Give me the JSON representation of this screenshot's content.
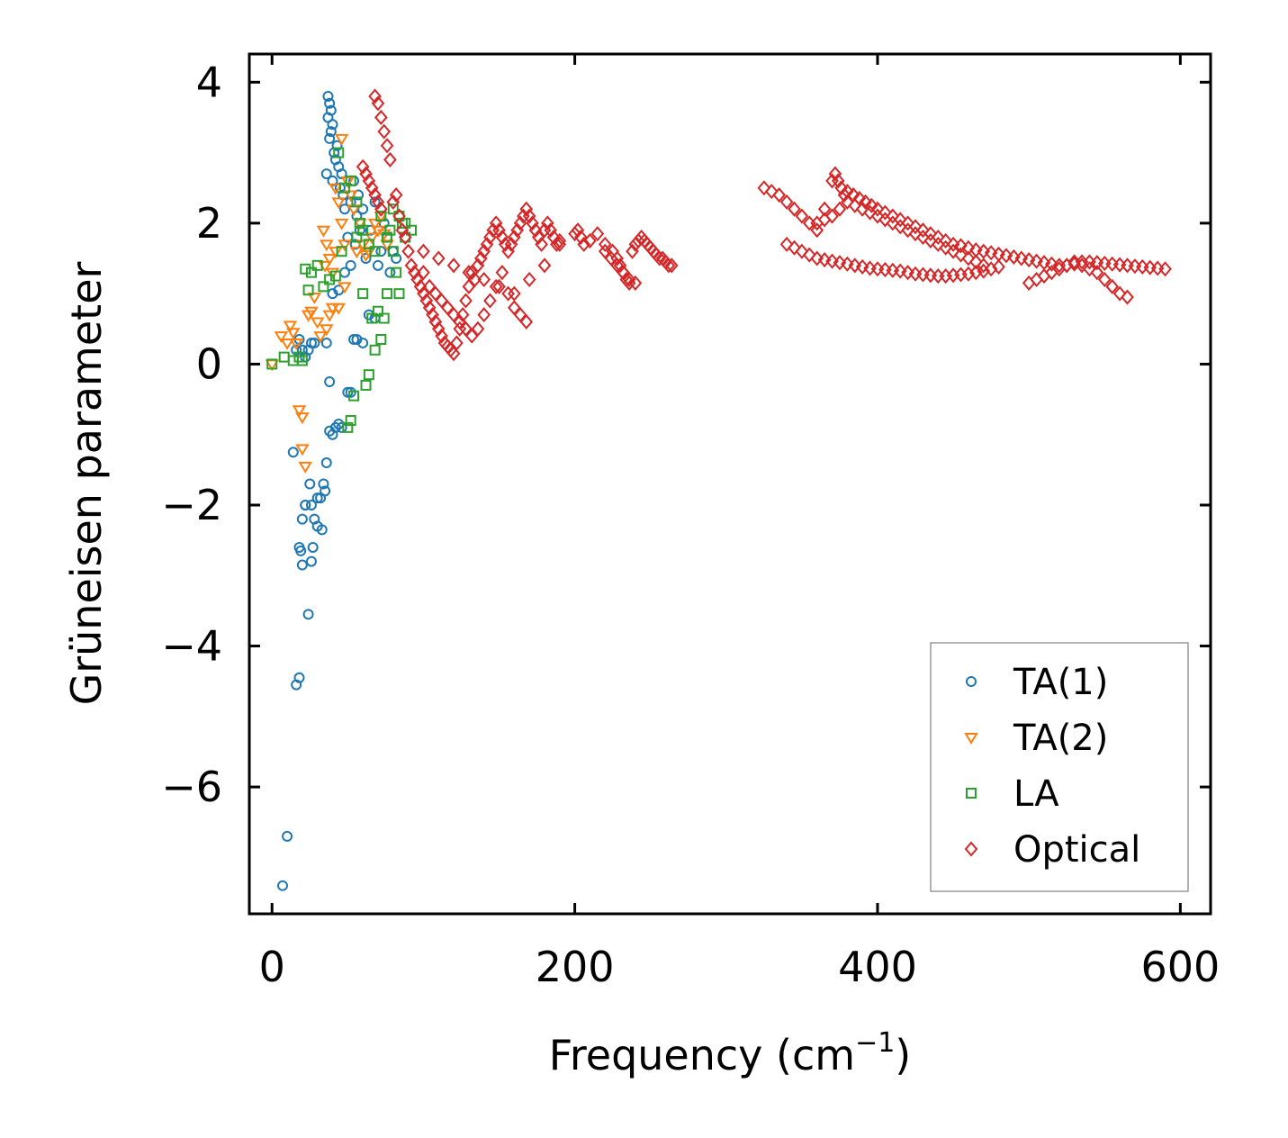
{
  "chart_data": {
    "type": "scatter",
    "title": "",
    "xlabel": "Frequency (cm",
    "xlabel_sup": "−1",
    "xlabel_close": ")",
    "ylabel": "Grüneisen parameter",
    "xlim": [
      -15,
      620
    ],
    "ylim": [
      -7.8,
      4.4
    ],
    "xticks": [
      0,
      200,
      400,
      600
    ],
    "xtick_labels": [
      "0",
      "200",
      "400",
      "600"
    ],
    "yticks": [
      4,
      2,
      0,
      -2,
      -4,
      -6
    ],
    "ytick_labels": [
      "4",
      "2",
      "0",
      "−2",
      "−4",
      "−6"
    ],
    "grid": false,
    "legend_position": "lower-right",
    "series": [
      {
        "name": "TA(1)",
        "marker": "circle",
        "color": "#1f77b4",
        "x": [
          7,
          10,
          14,
          16,
          18,
          19,
          20,
          22,
          24,
          25,
          26,
          27,
          28,
          30,
          32,
          33,
          35,
          36,
          37,
          37,
          38,
          38,
          39,
          39,
          40,
          40,
          41,
          42,
          43,
          44,
          45,
          46,
          47,
          48,
          50,
          52,
          54,
          55,
          56,
          57,
          58,
          60,
          62,
          65,
          68,
          70,
          72,
          74,
          76,
          78,
          80,
          82,
          18,
          20,
          22,
          26,
          30,
          34,
          36,
          38,
          40,
          42,
          44,
          46,
          50,
          52,
          54,
          56,
          60,
          64,
          68,
          16,
          18,
          20,
          22,
          24,
          26,
          28,
          36,
          38,
          40,
          44,
          48,
          52
        ],
        "y": [
          -7.4,
          -6.7,
          -1.25,
          -4.55,
          -4.45,
          -2.65,
          -2.85,
          -2.0,
          -3.55,
          -1.7,
          -2.8,
          -2.6,
          -2.2,
          -2.3,
          -1.9,
          -2.35,
          -1.8,
          2.7,
          3.8,
          3.5,
          3.7,
          3.2,
          3.6,
          3.3,
          3.4,
          2.6,
          3.0,
          2.9,
          3.1,
          2.8,
          2.5,
          2.7,
          2.4,
          2.2,
          1.8,
          2.3,
          2.6,
          1.7,
          2.1,
          2.4,
          1.9,
          2.2,
          1.5,
          1.9,
          2.3,
          1.4,
          1.6,
          2.0,
          1.8,
          1.3,
          1.6,
          1.5,
          -2.6,
          -2.2,
          -2.0,
          -2.0,
          -1.9,
          -1.7,
          -1.4,
          -0.95,
          -1.0,
          -0.9,
          -0.85,
          -0.9,
          -0.4,
          -0.4,
          0.35,
          0.35,
          0.3,
          0.7,
          0.65,
          0.2,
          0.35,
          0.2,
          0.1,
          0.2,
          0.3,
          0.3,
          0.3,
          -0.25,
          1.0,
          1.05,
          1.3,
          1.4
        ]
      },
      {
        "name": "TA(2)",
        "marker": "triangle-down",
        "color": "#ff7f0e",
        "x": [
          0,
          6,
          10,
          12,
          14,
          16,
          18,
          20,
          20,
          22,
          24,
          26,
          28,
          30,
          32,
          34,
          35,
          36,
          38,
          40,
          42,
          44,
          46,
          48,
          50,
          52,
          54,
          56,
          58,
          60,
          62,
          64,
          66,
          68,
          70,
          72,
          74,
          76,
          40,
          44,
          48,
          36,
          38,
          42,
          46
        ],
        "y": [
          0.0,
          0.4,
          0.3,
          0.55,
          0.45,
          0.3,
          -0.65,
          -0.75,
          -1.2,
          -1.45,
          0.7,
          0.75,
          0.95,
          0.6,
          0.4,
          1.9,
          1.4,
          1.7,
          1.5,
          1.3,
          1.6,
          2.3,
          2.0,
          1.7,
          2.6,
          2.4,
          2.2,
          1.6,
          2.0,
          1.7,
          1.55,
          1.6,
          1.8,
          2.0,
          1.9,
          2.1,
          1.85,
          1.7,
          0.8,
          0.8,
          1.1,
          0.5,
          0.7,
          2.5,
          3.2
        ]
      },
      {
        "name": "LA",
        "marker": "square",
        "color": "#2ca02c",
        "x": [
          0,
          8,
          14,
          18,
          20,
          22,
          24,
          26,
          30,
          34,
          38,
          42,
          46,
          50,
          52,
          54,
          56,
          58,
          60,
          62,
          64,
          66,
          68,
          70,
          72,
          74,
          76,
          78,
          80,
          82,
          84,
          86,
          88,
          52,
          56,
          60,
          64,
          68,
          72,
          76,
          80,
          84,
          88,
          92,
          48,
          44
        ],
        "y": [
          0.0,
          0.1,
          0.05,
          0.1,
          0.05,
          1.35,
          1.05,
          1.3,
          1.4,
          1.1,
          1.2,
          1.25,
          1.6,
          -0.9,
          -0.8,
          -0.45,
          1.8,
          2.0,
          1.0,
          -0.3,
          -0.15,
          0.65,
          0.2,
          0.75,
          0.35,
          0.65,
          1.0,
          1.9,
          1.6,
          1.3,
          1.0,
          2.0,
          1.8,
          2.6,
          2.3,
          1.9,
          1.7,
          1.6,
          2.1,
          1.8,
          2.2,
          2.1,
          2.0,
          1.9,
          2.5,
          3.0
        ]
      },
      {
        "name": "Optical",
        "marker": "diamond",
        "color": "#d62728",
        "x": [
          68,
          70,
          72,
          74,
          76,
          78,
          60,
          62,
          64,
          66,
          68,
          70,
          72,
          80,
          82,
          84,
          86,
          88,
          90,
          92,
          94,
          96,
          98,
          100,
          102,
          104,
          106,
          108,
          110,
          112,
          114,
          116,
          118,
          120,
          122,
          124,
          126,
          128,
          130,
          132,
          134,
          136,
          138,
          140,
          142,
          144,
          146,
          148,
          150,
          152,
          154,
          156,
          158,
          160,
          162,
          164,
          166,
          168,
          170,
          172,
          174,
          176,
          178,
          180,
          182,
          184,
          186,
          188,
          190,
          200,
          202,
          204,
          206,
          210,
          215,
          220,
          225,
          228,
          230,
          232,
          234,
          236,
          238,
          240,
          242,
          244,
          246,
          248,
          250,
          252,
          254,
          256,
          258,
          260,
          262,
          264,
          100,
          104,
          108,
          112,
          116,
          120,
          124,
          128,
          132,
          136,
          140,
          144,
          148,
          152,
          156,
          160,
          164,
          168,
          100,
          110,
          120,
          130,
          140,
          150,
          160,
          170,
          180,
          190,
          220,
          224,
          228,
          232,
          236,
          240,
          325,
          330,
          335,
          340,
          345,
          350,
          355,
          360,
          365,
          370,
          372,
          374,
          376,
          378,
          380,
          384,
          388,
          392,
          396,
          400,
          405,
          410,
          415,
          420,
          425,
          430,
          435,
          440,
          445,
          450,
          455,
          460,
          465,
          470,
          475,
          480,
          485,
          490,
          495,
          500,
          505,
          510,
          515,
          520,
          525,
          530,
          535,
          540,
          545,
          550,
          555,
          560,
          565,
          570,
          575,
          580,
          585,
          590,
          340,
          345,
          350,
          355,
          360,
          365,
          370,
          375,
          380,
          385,
          390,
          395,
          400,
          405,
          410,
          415,
          420,
          425,
          430,
          435,
          440,
          445,
          450,
          455,
          460,
          465,
          470,
          475,
          480,
          360,
          365,
          370,
          375,
          380,
          385,
          390,
          395,
          400,
          405,
          410,
          415,
          420,
          425,
          430,
          435,
          440,
          445,
          450,
          455,
          460,
          465,
          470,
          500,
          505,
          510,
          515,
          520,
          525,
          530,
          535,
          540,
          545,
          550,
          555,
          560,
          565
        ],
        "y": [
          3.8,
          3.7,
          3.5,
          3.3,
          3.1,
          2.9,
          2.8,
          2.7,
          2.6,
          2.5,
          2.4,
          2.3,
          2.2,
          2.3,
          2.4,
          2.1,
          1.9,
          1.8,
          1.6,
          1.4,
          1.3,
          1.2,
          1.1,
          1.0,
          0.9,
          0.8,
          0.7,
          0.6,
          0.5,
          0.4,
          0.3,
          0.25,
          0.2,
          0.15,
          0.3,
          0.5,
          0.7,
          0.9,
          1.1,
          1.3,
          1.2,
          1.4,
          1.5,
          1.6,
          1.7,
          1.8,
          1.9,
          2.0,
          1.9,
          1.8,
          1.7,
          1.6,
          1.7,
          1.8,
          1.9,
          2.0,
          2.1,
          2.2,
          2.1,
          2.0,
          1.9,
          1.8,
          1.7,
          1.9,
          2.0,
          1.9,
          1.8,
          1.7,
          1.75,
          1.85,
          1.9,
          1.8,
          1.7,
          1.75,
          1.85,
          1.7,
          1.6,
          1.5,
          1.4,
          1.3,
          1.2,
          1.15,
          1.6,
          1.7,
          1.75,
          1.8,
          1.75,
          1.7,
          1.65,
          1.6,
          1.55,
          1.5,
          1.5,
          1.45,
          1.4,
          1.4,
          1.3,
          1.1,
          1.0,
          0.9,
          0.8,
          0.7,
          0.6,
          0.5,
          0.4,
          0.5,
          0.7,
          0.9,
          1.1,
          1.3,
          1.0,
          0.8,
          0.7,
          0.6,
          1.6,
          1.5,
          1.4,
          1.3,
          1.2,
          1.1,
          1.0,
          1.2,
          1.4,
          1.7,
          1.6,
          1.5,
          1.4,
          1.3,
          1.2,
          1.15,
          2.5,
          2.45,
          2.4,
          2.3,
          2.2,
          2.1,
          2.0,
          1.9,
          2.2,
          2.6,
          2.7,
          2.6,
          2.5,
          2.4,
          2.45,
          2.4,
          2.35,
          2.3,
          2.25,
          2.2,
          2.15,
          2.1,
          2.05,
          2.0,
          1.95,
          1.9,
          1.85,
          1.8,
          1.75,
          1.7,
          1.68,
          1.65,
          1.62,
          1.6,
          1.58,
          1.56,
          1.54,
          1.52,
          1.5,
          1.48,
          1.46,
          1.44,
          1.42,
          1.4,
          1.4,
          1.42,
          1.45,
          1.45,
          1.44,
          1.43,
          1.42,
          1.41,
          1.4,
          1.39,
          1.38,
          1.37,
          1.36,
          1.35,
          1.7,
          1.65,
          1.6,
          1.55,
          1.5,
          1.48,
          1.46,
          1.44,
          1.42,
          1.4,
          1.38,
          1.36,
          1.35,
          1.34,
          1.33,
          1.32,
          1.3,
          1.28,
          1.27,
          1.26,
          1.25,
          1.25,
          1.26,
          1.27,
          1.28,
          1.3,
          1.32,
          1.35,
          1.38,
          2.0,
          2.05,
          2.1,
          2.2,
          2.3,
          2.25,
          2.2,
          2.15,
          2.1,
          2.05,
          2.0,
          1.95,
          1.9,
          1.85,
          1.8,
          1.75,
          1.7,
          1.65,
          1.6,
          1.55,
          1.5,
          1.45,
          1.4,
          1.15,
          1.2,
          1.25,
          1.3,
          1.35,
          1.4,
          1.45,
          1.4,
          1.35,
          1.3,
          1.2,
          1.1,
          1.0,
          0.95
        ]
      }
    ]
  }
}
